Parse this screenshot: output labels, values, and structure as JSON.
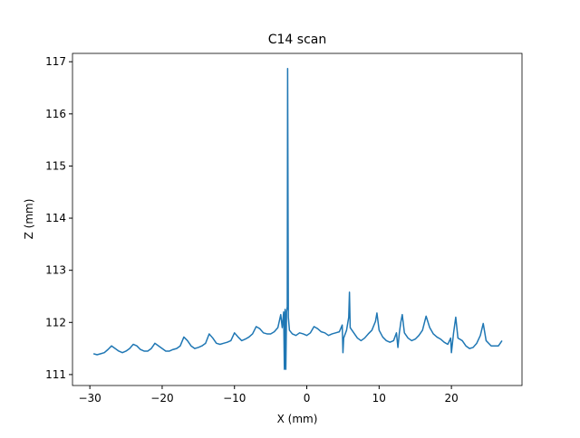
{
  "chart_data": {
    "type": "line",
    "title": "C14 scan",
    "x_label": "X (mm)",
    "y_label": "Z (mm)",
    "xlim": [
      -32.4,
      29.76
    ],
    "ylim": [
      110.79,
      117.16
    ],
    "xticks": [
      {
        "value": -30,
        "label": "−30"
      },
      {
        "value": -20,
        "label": "−20"
      },
      {
        "value": -10,
        "label": "−10"
      },
      0,
      10,
      20
    ],
    "yticks": [
      111,
      112,
      113,
      114,
      115,
      116,
      117
    ],
    "series": [
      {
        "color": "#1f77b4",
        "x": [
          -29.5,
          -29,
          -28.5,
          -28,
          -27.5,
          -27,
          -26.5,
          -26,
          -25.5,
          -25,
          -24.5,
          -24,
          -23.5,
          -23,
          -22.5,
          -22,
          -21.5,
          -21,
          -20.5,
          -20,
          -19.5,
          -19,
          -18.5,
          -18,
          -17.5,
          -17,
          -16.5,
          -16,
          -15.5,
          -15,
          -14.5,
          -14,
          -13.5,
          -13,
          -12.5,
          -12,
          -11.5,
          -11,
          -10.5,
          -10,
          -9.5,
          -9,
          -8.5,
          -8,
          -7.5,
          -7,
          -6.5,
          -6,
          -5.5,
          -5,
          -4.5,
          -4,
          -3.6,
          -3.4,
          -3.2,
          -3.1,
          -3.0,
          -2.9,
          -2.8,
          -2.7,
          -2.65,
          -2.55,
          -2.4,
          -2,
          -1.5,
          -1,
          -0.5,
          0,
          0.5,
          1,
          1.5,
          2,
          2.5,
          3,
          3.5,
          4,
          4.5,
          4.9,
          5,
          5.1,
          5.5,
          5.8,
          5.9,
          6.0,
          6.5,
          7,
          7.5,
          8,
          8.5,
          9,
          9.5,
          9.7,
          10,
          10.5,
          11,
          11.5,
          12,
          12.4,
          12.6,
          12.8,
          13,
          13.2,
          13.5,
          14,
          14.5,
          15,
          15.5,
          16,
          16.5,
          17,
          17.5,
          18,
          18.5,
          19,
          19.5,
          19.9,
          20,
          20.3,
          20.6,
          20.9,
          21.5,
          22,
          22.5,
          23,
          23.5,
          24,
          24.4,
          24.8,
          25.5,
          26,
          26.5,
          27
        ],
        "values": [
          111.4,
          111.38,
          111.4,
          111.42,
          111.48,
          111.55,
          111.5,
          111.45,
          111.42,
          111.45,
          111.5,
          111.58,
          111.55,
          111.48,
          111.45,
          111.45,
          111.5,
          111.6,
          111.55,
          111.5,
          111.45,
          111.45,
          111.48,
          111.5,
          111.55,
          111.72,
          111.65,
          111.55,
          111.5,
          111.52,
          111.55,
          111.6,
          111.78,
          111.7,
          111.6,
          111.58,
          111.6,
          111.62,
          111.65,
          111.8,
          111.72,
          111.65,
          111.68,
          111.72,
          111.78,
          111.92,
          111.88,
          111.8,
          111.78,
          111.78,
          111.82,
          111.9,
          112.15,
          111.9,
          112.2,
          111.1,
          112.25,
          111.1,
          112.2,
          112.3,
          116.87,
          112.1,
          111.85,
          111.78,
          111.75,
          111.8,
          111.78,
          111.75,
          111.8,
          111.92,
          111.88,
          111.82,
          111.8,
          111.75,
          111.78,
          111.8,
          111.82,
          111.95,
          111.42,
          111.7,
          111.85,
          112.1,
          112.58,
          111.9,
          111.8,
          111.7,
          111.65,
          111.7,
          111.78,
          111.85,
          112.02,
          112.18,
          111.85,
          111.72,
          111.65,
          111.62,
          111.65,
          111.8,
          111.52,
          111.8,
          112.0,
          112.15,
          111.8,
          111.7,
          111.65,
          111.68,
          111.75,
          111.85,
          112.12,
          111.9,
          111.78,
          111.72,
          111.68,
          111.62,
          111.58,
          111.7,
          111.42,
          111.8,
          112.1,
          111.7,
          111.65,
          111.55,
          111.5,
          111.52,
          111.6,
          111.75,
          111.98,
          111.65,
          111.55,
          111.55,
          111.55,
          111.65
        ]
      }
    ]
  }
}
